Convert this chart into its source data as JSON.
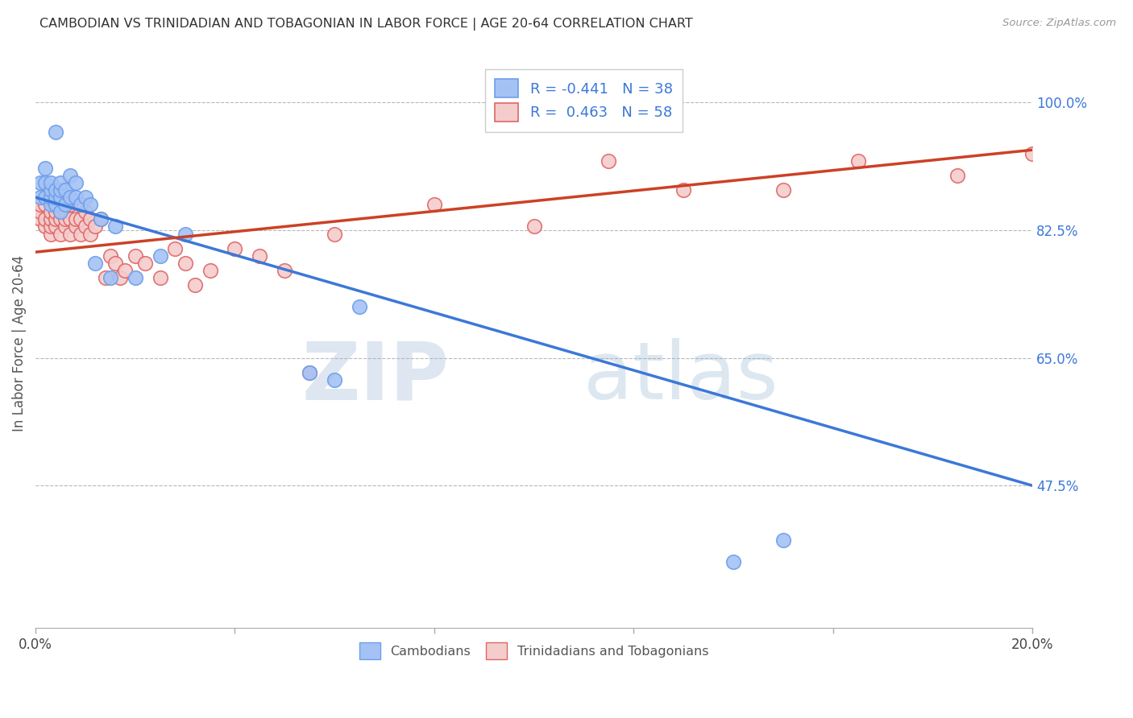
{
  "title": "CAMBODIAN VS TRINIDADIAN AND TOBAGONIAN IN LABOR FORCE | AGE 20-64 CORRELATION CHART",
  "source": "Source: ZipAtlas.com",
  "ylabel": "In Labor Force | Age 20-64",
  "xlim": [
    0.0,
    0.2
  ],
  "ylim": [
    0.28,
    1.06
  ],
  "xticks": [
    0.0,
    0.04,
    0.08,
    0.12,
    0.16,
    0.2
  ],
  "xticklabels": [
    "0.0%",
    "",
    "",
    "",
    "",
    "20.0%"
  ],
  "yticks_right": [
    0.475,
    0.65,
    0.825,
    1.0
  ],
  "yticklabels_right": [
    "47.5%",
    "65.0%",
    "82.5%",
    "100.0%"
  ],
  "blue_fill": "#a4c2f4",
  "pink_fill": "#f4cccc",
  "blue_edge": "#6d9eeb",
  "pink_edge": "#e06666",
  "blue_line": "#3c78d8",
  "pink_line": "#cc4125",
  "grid_color": "#b7b7b7",
  "background_color": "#ffffff",
  "watermark_zip": "ZIP",
  "watermark_atlas": "atlas",
  "legend_R_blue": "-0.441",
  "legend_N_blue": "38",
  "legend_R_pink": "0.463",
  "legend_N_pink": "58",
  "legend_label_blue": "Cambodians",
  "legend_label_pink": "Trinidadians and Tobagonians",
  "blue_trend_x0": 0.0,
  "blue_trend_y0": 0.87,
  "blue_trend_x1": 0.2,
  "blue_trend_y1": 0.475,
  "pink_trend_x0": 0.0,
  "pink_trend_y0": 0.795,
  "pink_trend_x1": 0.2,
  "pink_trend_y1": 0.935,
  "cambodian_x": [
    0.001,
    0.001,
    0.002,
    0.002,
    0.002,
    0.003,
    0.003,
    0.003,
    0.003,
    0.004,
    0.004,
    0.004,
    0.004,
    0.005,
    0.005,
    0.005,
    0.005,
    0.006,
    0.006,
    0.007,
    0.007,
    0.008,
    0.008,
    0.009,
    0.01,
    0.011,
    0.012,
    0.013,
    0.015,
    0.016,
    0.02,
    0.025,
    0.03,
    0.055,
    0.06,
    0.065,
    0.14,
    0.15
  ],
  "cambodian_y": [
    0.87,
    0.89,
    0.87,
    0.89,
    0.91,
    0.86,
    0.87,
    0.88,
    0.89,
    0.86,
    0.87,
    0.88,
    0.96,
    0.85,
    0.87,
    0.88,
    0.89,
    0.86,
    0.88,
    0.87,
    0.9,
    0.87,
    0.89,
    0.86,
    0.87,
    0.86,
    0.78,
    0.84,
    0.76,
    0.83,
    0.76,
    0.79,
    0.82,
    0.63,
    0.62,
    0.72,
    0.37,
    0.4
  ],
  "trinidadian_x": [
    0.001,
    0.001,
    0.001,
    0.002,
    0.002,
    0.002,
    0.003,
    0.003,
    0.003,
    0.003,
    0.004,
    0.004,
    0.004,
    0.004,
    0.005,
    0.005,
    0.005,
    0.006,
    0.006,
    0.006,
    0.007,
    0.007,
    0.007,
    0.008,
    0.008,
    0.009,
    0.009,
    0.01,
    0.01,
    0.011,
    0.011,
    0.012,
    0.013,
    0.014,
    0.015,
    0.016,
    0.017,
    0.018,
    0.02,
    0.022,
    0.025,
    0.028,
    0.03,
    0.032,
    0.035,
    0.04,
    0.045,
    0.05,
    0.055,
    0.06,
    0.08,
    0.1,
    0.115,
    0.13,
    0.15,
    0.165,
    0.185,
    0.2
  ],
  "trinidadian_y": [
    0.84,
    0.85,
    0.86,
    0.83,
    0.84,
    0.86,
    0.82,
    0.83,
    0.84,
    0.85,
    0.83,
    0.84,
    0.85,
    0.86,
    0.82,
    0.84,
    0.85,
    0.83,
    0.84,
    0.85,
    0.82,
    0.84,
    0.86,
    0.83,
    0.84,
    0.82,
    0.84,
    0.83,
    0.85,
    0.82,
    0.84,
    0.83,
    0.84,
    0.76,
    0.79,
    0.78,
    0.76,
    0.77,
    0.79,
    0.78,
    0.76,
    0.8,
    0.78,
    0.75,
    0.77,
    0.8,
    0.79,
    0.77,
    0.63,
    0.82,
    0.86,
    0.83,
    0.92,
    0.88,
    0.88,
    0.92,
    0.9,
    0.93
  ]
}
